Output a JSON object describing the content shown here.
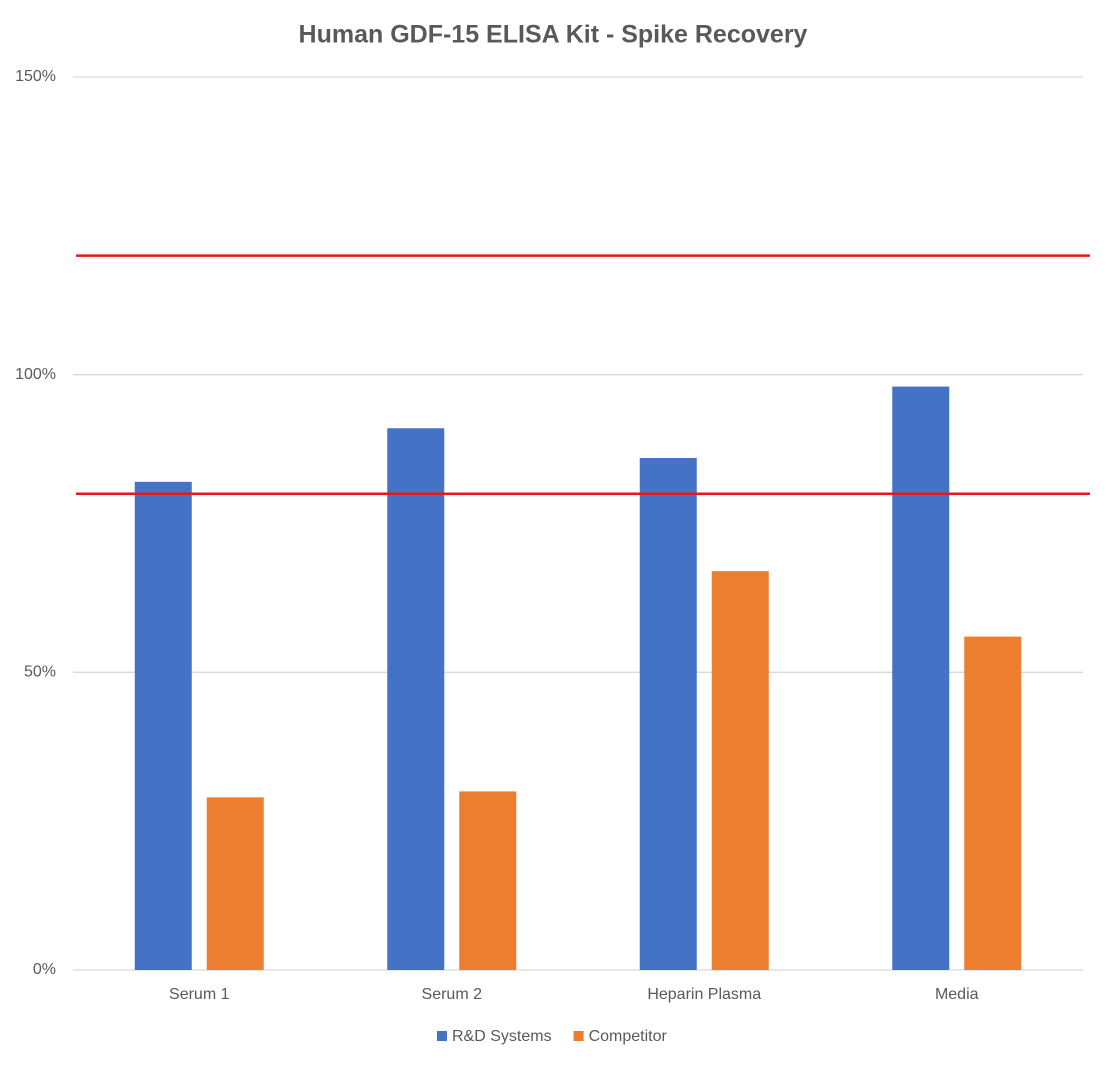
{
  "chart_data": {
    "type": "bar",
    "title": "Human GDF-15 ELISA Kit - Spike Recovery",
    "categories": [
      "Serum 1",
      "Serum 2",
      "Heparin Plasma",
      "Media"
    ],
    "series": [
      {
        "name": "R&D Systems",
        "color": "#4472c4",
        "values": [
          82,
          91,
          86,
          98
        ]
      },
      {
        "name": "Competitor",
        "color": "#ed7d31",
        "values": [
          29,
          30,
          67,
          56
        ]
      }
    ],
    "ylim": [
      0,
      150
    ],
    "yticks": [
      {
        "value": 0,
        "label": "0%"
      },
      {
        "value": 50,
        "label": "50%"
      },
      {
        "value": 100,
        "label": "100%"
      },
      {
        "value": 150,
        "label": "150%"
      }
    ],
    "grid": true,
    "reference_lines": [
      {
        "value": 120,
        "color": "#e31a1c"
      },
      {
        "value": 80,
        "color": "#e31a1c"
      }
    ],
    "legend": "bottom"
  }
}
